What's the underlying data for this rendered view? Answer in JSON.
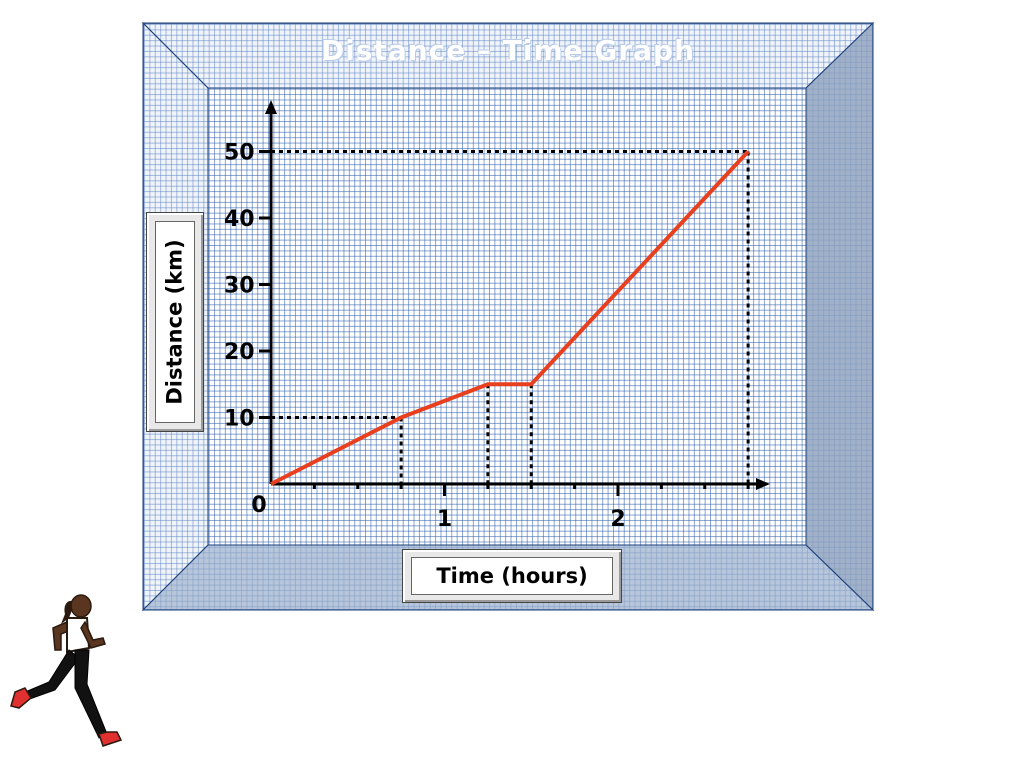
{
  "chart_data": {
    "type": "line",
    "title": "Distance – Time Graph",
    "xlabel": "Time (hours)",
    "ylabel": "Distance (km)",
    "xlim": [
      0,
      2.95
    ],
    "ylim": [
      0,
      50
    ],
    "x_ticks": [
      "0",
      "1",
      "2"
    ],
    "y_ticks": [
      "10",
      "20",
      "30",
      "40",
      "50"
    ],
    "grid": true,
    "series": [
      {
        "x": [
          0,
          0.75,
          1.25,
          1.5,
          2.75
        ],
        "y": [
          0,
          10,
          15,
          15,
          50
        ]
      }
    ],
    "guides": [
      {
        "x": 0.75,
        "y": 10
      },
      {
        "x": 1.25,
        "y": 15
      },
      {
        "x": 1.5,
        "y": 15
      },
      {
        "x": 2.75,
        "y": 50
      }
    ],
    "colors": {
      "line": "#e8401f",
      "axis": "#000000",
      "grid": "#2b5aa6",
      "bevel": "#8fa3c0"
    }
  }
}
